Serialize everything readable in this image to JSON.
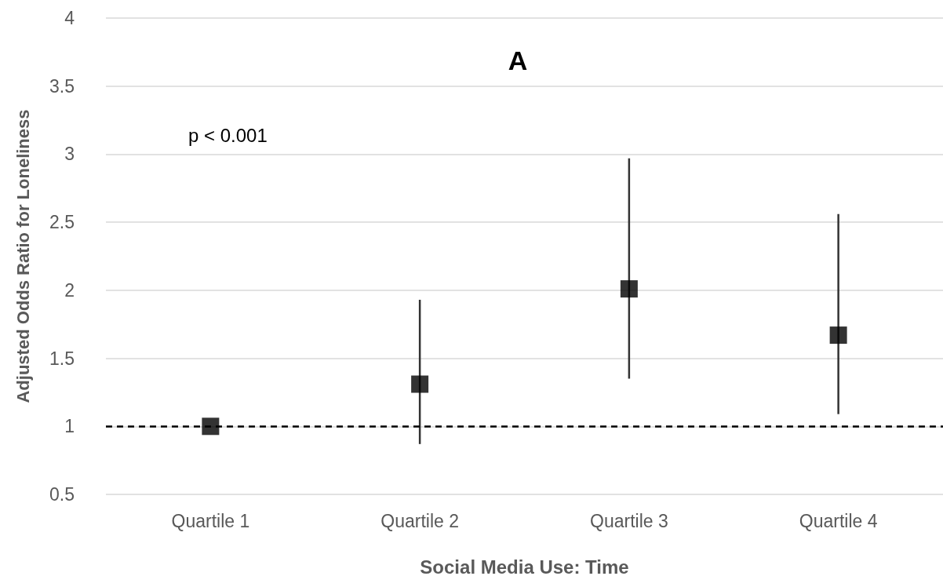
{
  "chart_data": {
    "type": "scatter",
    "title": "A",
    "xlabel": "Social Media Use: Time",
    "ylabel": "Adjusted Odds Ratio for Loneliness",
    "categories": [
      "Quartile 1",
      "Quartile 2",
      "Quartile 3",
      "Quartile 4"
    ],
    "values": [
      1.0,
      1.31,
      2.01,
      1.67
    ],
    "errors": [
      null,
      [
        0.87,
        1.93
      ],
      [
        1.35,
        2.97
      ],
      [
        1.09,
        2.56
      ]
    ],
    "color": "#000000",
    "marker": "square",
    "ylim": [
      0.5,
      4
    ],
    "yticks": [
      0.5,
      1,
      1.5,
      2,
      2.5,
      3,
      3.5,
      4
    ],
    "grid": "y",
    "ref_lines": [
      {
        "axis": "y",
        "value": 1,
        "color": "#000000",
        "line_style": "dashed"
      }
    ],
    "annotations": [
      "p < 0.001"
    ]
  }
}
